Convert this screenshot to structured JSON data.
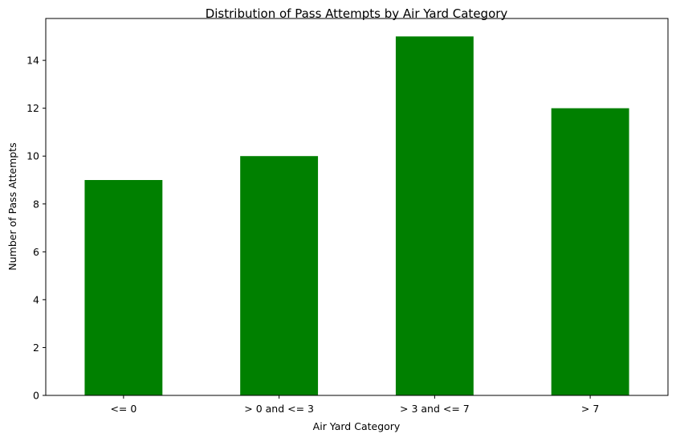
{
  "chart_data": {
    "type": "bar",
    "title": "Distribution of Pass Attempts by Air Yard Category",
    "xlabel": "Air Yard Category",
    "ylabel": "Number of Pass Attempts",
    "categories": [
      "<= 0",
      "> 0 and <= 3",
      "> 3 and <= 7",
      "> 7"
    ],
    "values": [
      9,
      10,
      15,
      12
    ],
    "ylim": [
      0,
      15.75
    ],
    "yticks": [
      0,
      2,
      4,
      6,
      8,
      10,
      12,
      14
    ],
    "bar_color": "#008000",
    "grid": false,
    "legend": "none"
  }
}
